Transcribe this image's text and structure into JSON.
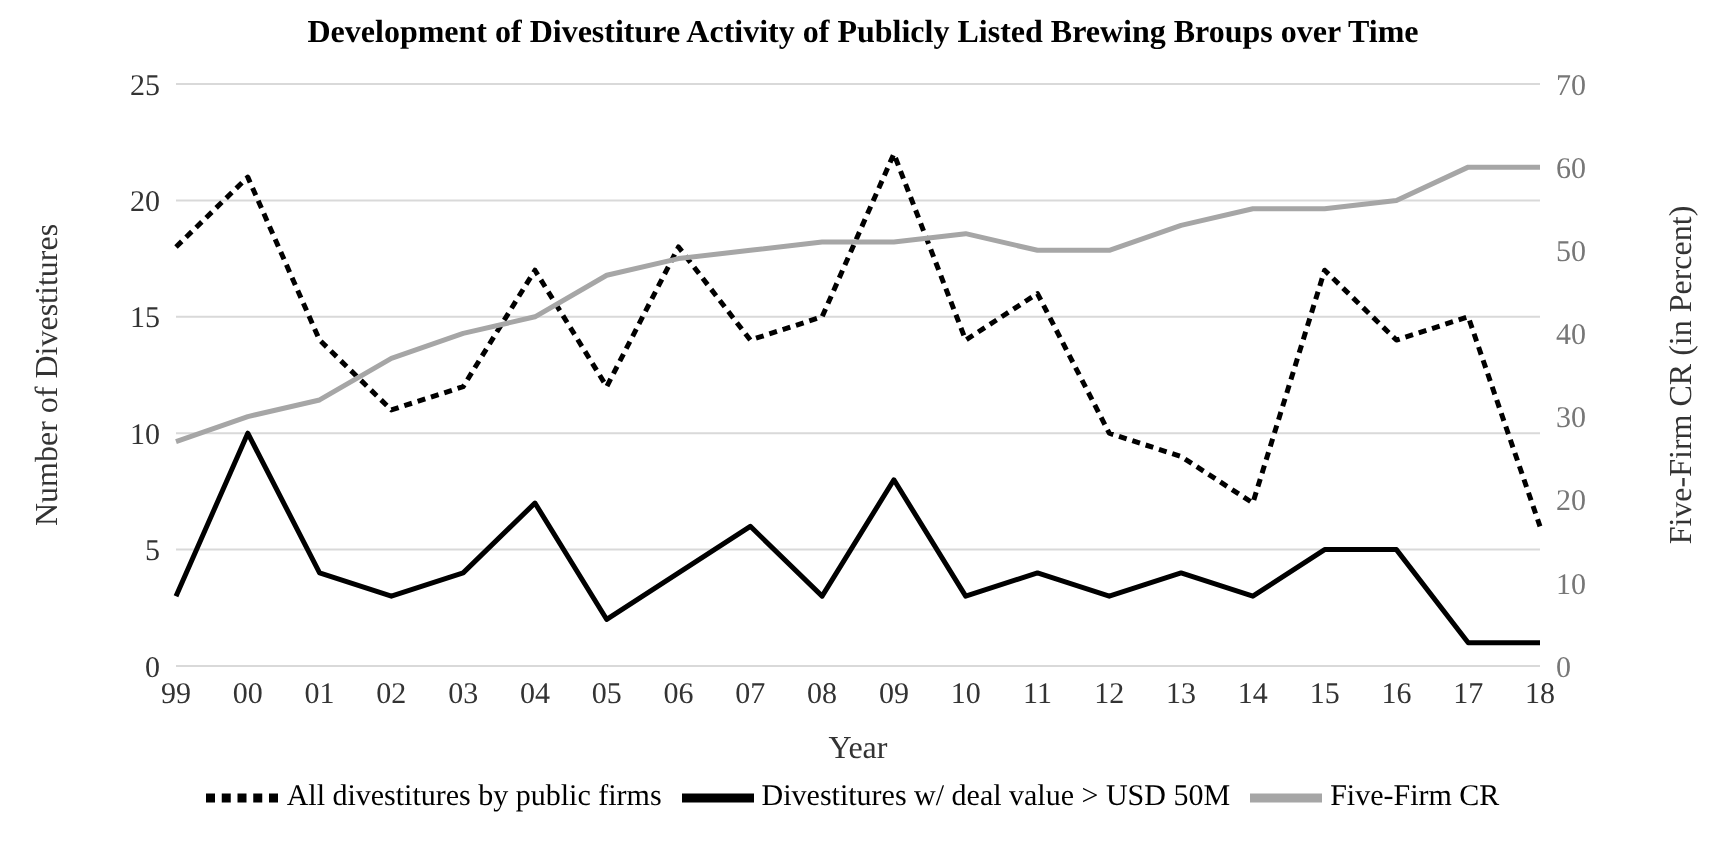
{
  "chart_data": {
    "type": "line",
    "title": "Development of Divestiture Activity of Publicly Listed Brewing Broups over Time",
    "xlabel": "Year",
    "ylabel": "Number of Divestitures",
    "y2label": "Five-Firm CR (in Percent)",
    "categories": [
      "99",
      "00",
      "01",
      "02",
      "03",
      "04",
      "05",
      "06",
      "07",
      "08",
      "09",
      "10",
      "11",
      "12",
      "13",
      "14",
      "15",
      "16",
      "17",
      "18"
    ],
    "series": [
      {
        "name": "All divestitures by public firms",
        "color": "#000000",
        "line_style": "dashed",
        "values": [
          18,
          21,
          14,
          11,
          12,
          17,
          12,
          18,
          14,
          15,
          22,
          14,
          16,
          10,
          9,
          7,
          17,
          14,
          15,
          6
        ]
      },
      {
        "name": "Divestitures w/ deal value > USD 50M",
        "color": "#000000",
        "line_style": "solid",
        "values": [
          3,
          10,
          4,
          3,
          4,
          7,
          2,
          4,
          6,
          3,
          8,
          3,
          4,
          3,
          4,
          3,
          5,
          5,
          1,
          1
        ]
      },
      {
        "name": "Five-Firm CR",
        "color": "#a6a6a6",
        "line_style": "solid",
        "axis": "y2",
        "values": [
          27,
          30,
          32,
          37,
          40,
          42,
          47,
          49,
          50,
          51,
          51,
          52,
          50,
          50,
          53,
          55,
          55,
          56,
          60,
          60
        ]
      }
    ],
    "ylim": [
      0,
      25
    ],
    "yticks": [
      0,
      5,
      10,
      15,
      20,
      25
    ],
    "y2lim": [
      0,
      70
    ],
    "y2ticks": [
      0,
      10,
      20,
      30,
      40,
      50,
      60,
      70
    ],
    "grid": "y",
    "legend": "bottom",
    "marker": "none"
  }
}
